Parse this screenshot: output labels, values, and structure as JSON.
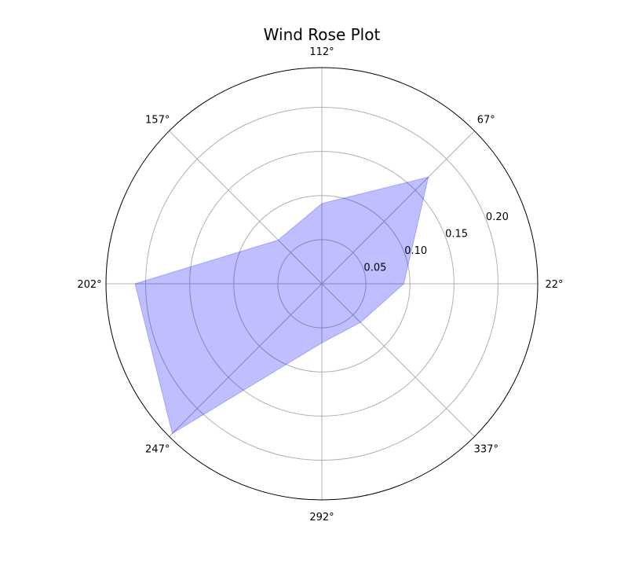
{
  "chart_data": {
    "type": "radar",
    "title": "Wind Rose Plot",
    "angle_tick_labels": [
      "22°",
      "67°",
      "112°",
      "157°",
      "202°",
      "247°",
      "292°",
      "337°"
    ],
    "radial_tick_labels": [
      "0.05",
      "0.10",
      "0.15",
      "0.20"
    ],
    "radial_ticks": [
      0.05,
      0.1,
      0.15,
      0.2
    ],
    "rmax": 0.245,
    "grid": true,
    "series": [
      {
        "color": "#0000ff",
        "values": [
          0.093,
          0.171,
          0.091,
          0.07,
          0.212,
          0.24,
          0.067,
          0.062
        ]
      }
    ]
  }
}
